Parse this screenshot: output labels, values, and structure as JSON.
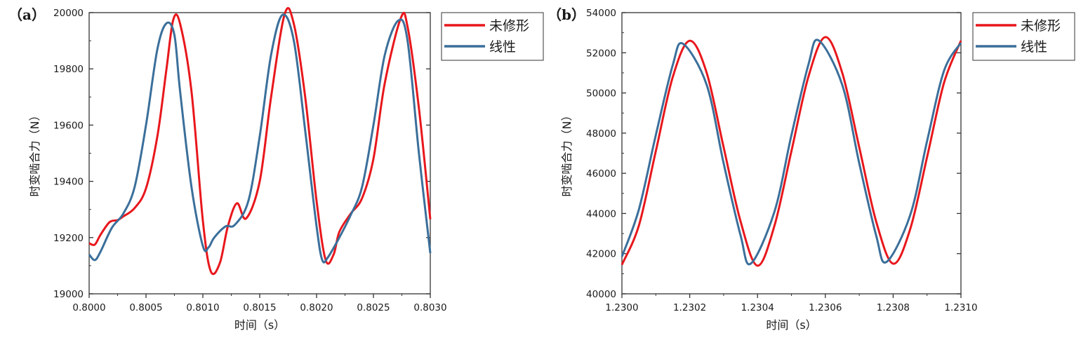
{
  "colors": {
    "unmodified": "#e8171c",
    "linear": "#3b6f9a",
    "axis": "#333333"
  },
  "chart_data": [
    {
      "type": "line",
      "panel_label": "（a）",
      "xlabel": "时间（s）",
      "ylabel": "时变啮合力（N）",
      "xlim": [
        0.8,
        0.803
      ],
      "ylim": [
        19000,
        20000
      ],
      "xticks": [
        "0.8000",
        "0.8005",
        "0.8010",
        "0.8015",
        "0.8020",
        "0.8025",
        "0.8030"
      ],
      "yticks": [
        "19000",
        "19200",
        "19400",
        "19600",
        "19800",
        "20000"
      ],
      "legend_position": "top-right",
      "series": [
        {
          "name": "未修形",
          "color": "#e8171c",
          "points": [
            [
              0.8,
              19180
            ],
            [
              0.80005,
              19175
            ],
            [
              0.8001,
              19210
            ],
            [
              0.80018,
              19255
            ],
            [
              0.80025,
              19262
            ],
            [
              0.8003,
              19275
            ],
            [
              0.8004,
              19305
            ],
            [
              0.8005,
              19375
            ],
            [
              0.8006,
              19560
            ],
            [
              0.80068,
              19800
            ],
            [
              0.80074,
              19975
            ],
            [
              0.8008,
              19960
            ],
            [
              0.8009,
              19720
            ],
            [
              0.801,
              19260
            ],
            [
              0.80107,
              19080
            ],
            [
              0.80115,
              19110
            ],
            [
              0.80122,
              19240
            ],
            [
              0.8013,
              19322
            ],
            [
              0.80138,
              19268
            ],
            [
              0.8015,
              19400
            ],
            [
              0.8016,
              19700
            ],
            [
              0.80172,
              19995
            ],
            [
              0.8018,
              19960
            ],
            [
              0.8019,
              19700
            ],
            [
              0.802,
              19330
            ],
            [
              0.80208,
              19120
            ],
            [
              0.80215,
              19140
            ],
            [
              0.8022,
              19220
            ],
            [
              0.8023,
              19285
            ],
            [
              0.8024,
              19340
            ],
            [
              0.8025,
              19480
            ],
            [
              0.8026,
              19750
            ],
            [
              0.80274,
              19980
            ],
            [
              0.8028,
              19950
            ],
            [
              0.8029,
              19660
            ],
            [
              0.803,
              19265
            ]
          ]
        },
        {
          "name": "线性",
          "color": "#3b6f9a",
          "points": [
            [
              0.8,
              19140
            ],
            [
              0.80005,
              19120
            ],
            [
              0.8001,
              19150
            ],
            [
              0.8002,
              19235
            ],
            [
              0.8003,
              19285
            ],
            [
              0.8004,
              19380
            ],
            [
              0.8005,
              19600
            ],
            [
              0.8006,
              19870
            ],
            [
              0.80068,
              19962
            ],
            [
              0.80075,
              19920
            ],
            [
              0.8008,
              19720
            ],
            [
              0.8009,
              19380
            ],
            [
              0.801,
              19170
            ],
            [
              0.80105,
              19165
            ],
            [
              0.8011,
              19200
            ],
            [
              0.8012,
              19240
            ],
            [
              0.80128,
              19245
            ],
            [
              0.8014,
              19330
            ],
            [
              0.8015,
              19560
            ],
            [
              0.8016,
              19850
            ],
            [
              0.8017,
              19992
            ],
            [
              0.8018,
              19900
            ],
            [
              0.8019,
              19580
            ],
            [
              0.802,
              19240
            ],
            [
              0.80205,
              19120
            ],
            [
              0.8021,
              19130
            ],
            [
              0.8022,
              19200
            ],
            [
              0.8023,
              19280
            ],
            [
              0.8024,
              19380
            ],
            [
              0.8025,
              19600
            ],
            [
              0.8026,
              19850
            ],
            [
              0.80272,
              19972
            ],
            [
              0.8028,
              19900
            ],
            [
              0.8029,
              19500
            ],
            [
              0.803,
              19145
            ]
          ]
        }
      ]
    },
    {
      "type": "line",
      "panel_label": "（b）",
      "xlabel": "时间（s）",
      "ylabel": "时变啮合力（N）",
      "xlim": [
        1.23,
        1.231
      ],
      "ylim": [
        40000,
        54000
      ],
      "xticks": [
        "1.2300",
        "1.2302",
        "1.2304",
        "1.2306",
        "1.2308",
        "1.2310"
      ],
      "yticks": [
        "40000",
        "42000",
        "44000",
        "46000",
        "48000",
        "50000",
        "52000",
        "54000"
      ],
      "legend_position": "top-right",
      "series": [
        {
          "name": "未修形",
          "color": "#e8171c",
          "points": [
            [
              1.23,
              41450
            ],
            [
              1.23005,
              43400
            ],
            [
              1.2301,
              47100
            ],
            [
              1.23015,
              50800
            ],
            [
              1.2302,
              52600
            ],
            [
              1.23025,
              51000
            ],
            [
              1.2303,
              47300
            ],
            [
              1.23035,
              43600
            ],
            [
              1.2304,
              41400
            ],
            [
              1.23045,
              43400
            ],
            [
              1.2305,
              47100
            ],
            [
              1.23055,
              50800
            ],
            [
              1.2306,
              52780
            ],
            [
              1.23065,
              51000
            ],
            [
              1.2307,
              47300
            ],
            [
              1.23075,
              43600
            ],
            [
              1.2308,
              41500
            ],
            [
              1.23085,
              43200
            ],
            [
              1.2309,
              46800
            ],
            [
              1.23095,
              50500
            ],
            [
              1.231,
              52600
            ]
          ]
        },
        {
          "name": "线性",
          "color": "#3b6f9a",
          "points": [
            [
              1.23,
              41850
            ],
            [
              1.23005,
              44200
            ],
            [
              1.2301,
              47900
            ],
            [
              1.23015,
              51400
            ],
            [
              1.23018,
              52450
            ],
            [
              1.23025,
              50400
            ],
            [
              1.2303,
              46500
            ],
            [
              1.23035,
              42900
            ],
            [
              1.23038,
              41500
            ],
            [
              1.23045,
              44100
            ],
            [
              1.2305,
              47900
            ],
            [
              1.23055,
              51400
            ],
            [
              1.23058,
              52620
            ],
            [
              1.23065,
              50400
            ],
            [
              1.2307,
              46500
            ],
            [
              1.23075,
              42900
            ],
            [
              1.23078,
              41580
            ],
            [
              1.23085,
              43900
            ],
            [
              1.2309,
              47600
            ],
            [
              1.23095,
              51100
            ],
            [
              1.231,
              52500
            ]
          ]
        }
      ]
    }
  ]
}
